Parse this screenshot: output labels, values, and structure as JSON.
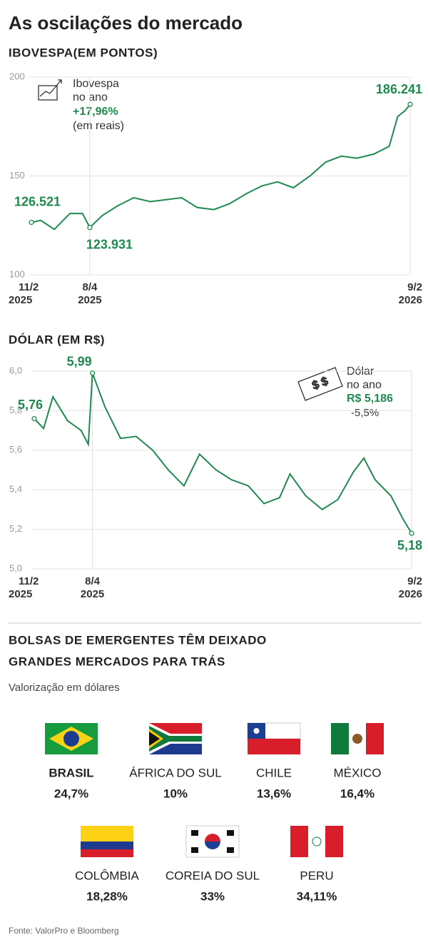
{
  "title": "As oscilações do mercado",
  "chart_data": [
    {
      "type": "line",
      "title": "IBOVESPA(EM PONTOS)",
      "color": "#1f8a4f",
      "x": [
        "2025-02-11",
        "2025-02-20",
        "2025-03-05",
        "2025-03-20",
        "2025-04-01",
        "2025-04-08",
        "2025-04-20",
        "2025-05-05",
        "2025-05-20",
        "2025-06-05",
        "2025-06-20",
        "2025-07-05",
        "2025-07-20",
        "2025-08-05",
        "2025-08-20",
        "2025-09-05",
        "2025-09-20",
        "2025-10-05",
        "2025-10-20",
        "2025-11-05",
        "2025-11-20",
        "2025-12-05",
        "2025-12-20",
        "2026-01-05",
        "2026-01-20",
        "2026-01-28",
        "2026-02-04",
        "2026-02-09"
      ],
      "values": [
        126.5,
        127.5,
        123,
        131,
        131,
        123.9,
        130,
        135,
        139,
        137,
        138,
        139,
        134,
        133,
        136,
        141,
        145,
        147,
        144,
        150,
        157,
        160,
        159,
        161,
        165,
        180,
        183,
        186.2
      ],
      "xlim": [
        "2025-02-11",
        "2026-02-09"
      ],
      "xticks": [
        {
          "value": "2025-02-11",
          "label": "11/2",
          "year": "2025"
        },
        {
          "value": "2025-04-08",
          "label": "8/4",
          "year": "2025"
        },
        {
          "value": "2026-02-09",
          "label": "9/2",
          "year": "2026"
        }
      ],
      "ylim": [
        100,
        200
      ],
      "yticks": [
        100,
        150,
        200
      ],
      "grid": true,
      "annotations": [
        {
          "x": "2025-02-11",
          "value": 126.521,
          "label": "126.521"
        },
        {
          "x": "2025-04-08",
          "value": 123.931,
          "label": "123.931"
        },
        {
          "x": "2026-02-09",
          "value": 186.241,
          "label": "186.241"
        }
      ],
      "infobox": {
        "name": "Ibovespa",
        "period": "no ano",
        "change": "+17,96%",
        "note": "(em reais)"
      }
    },
    {
      "type": "line",
      "title": "DÓLAR (EM R$)",
      "color": "#1f8a4f",
      "x": [
        "2025-02-11",
        "2025-02-20",
        "2025-03-01",
        "2025-03-15",
        "2025-03-28",
        "2025-04-04",
        "2025-04-08",
        "2025-04-20",
        "2025-05-05",
        "2025-05-20",
        "2025-06-05",
        "2025-06-20",
        "2025-07-05",
        "2025-07-20",
        "2025-08-05",
        "2025-08-20",
        "2025-09-05",
        "2025-09-20",
        "2025-10-05",
        "2025-10-15",
        "2025-10-30",
        "2025-11-15",
        "2025-11-30",
        "2025-12-15",
        "2025-12-25",
        "2026-01-05",
        "2026-01-20",
        "2026-02-01",
        "2026-02-09"
      ],
      "values": [
        5.76,
        5.71,
        5.87,
        5.75,
        5.7,
        5.63,
        5.99,
        5.82,
        5.66,
        5.67,
        5.6,
        5.5,
        5.42,
        5.58,
        5.5,
        5.45,
        5.42,
        5.33,
        5.36,
        5.48,
        5.37,
        5.3,
        5.35,
        5.49,
        5.56,
        5.45,
        5.37,
        5.25,
        5.18
      ],
      "xlim": [
        "2025-02-11",
        "2026-02-09"
      ],
      "xticks": [
        {
          "value": "2025-02-11",
          "label": "11/2",
          "year": "2025"
        },
        {
          "value": "2025-04-08",
          "label": "8/4",
          "year": "2025"
        },
        {
          "value": "2026-02-09",
          "label": "9/2",
          "year": "2026"
        }
      ],
      "ylim": [
        5.0,
        6.0
      ],
      "yticks": [
        {
          "value": 5.0,
          "label": "5,0"
        },
        {
          "value": 5.2,
          "label": "5,2"
        },
        {
          "value": 5.4,
          "label": "5,4"
        },
        {
          "value": 5.6,
          "label": "5,6"
        },
        {
          "value": 5.8,
          "label": "5,8"
        },
        {
          "value": 6.0,
          "label": "6,0"
        }
      ],
      "grid": true,
      "annotations": [
        {
          "x": "2025-02-11",
          "value": 5.76,
          "label": "5,76"
        },
        {
          "x": "2025-04-08",
          "value": 5.99,
          "label": "5,99"
        },
        {
          "x": "2026-02-09",
          "value": 5.18,
          "label": "5,18"
        }
      ],
      "infobox": {
        "name": "Dólar",
        "period": "no ano",
        "change": "R$ 5,186",
        "note": "-5,5%"
      }
    }
  ],
  "emergentes": {
    "title": [
      "BOLSAS DE EMERGENTES TÊM DEIXADO",
      "GRANDES MERCADOS PARA TRÁS"
    ],
    "subtitle": "Valorização em dólares",
    "countries": [
      {
        "name": "BRASIL",
        "value": "24,7%"
      },
      {
        "name": "ÁFRICA DO SUL",
        "value": "10%"
      },
      {
        "name": "CHILE",
        "value": "13,6%"
      },
      {
        "name": "MÉXICO",
        "value": "16,4%"
      },
      {
        "name": "COLÔMBIA",
        "value": "18,28%"
      },
      {
        "name": "COREIA DO SUL",
        "value": "33%"
      },
      {
        "name": "PERU",
        "value": "34,11%"
      }
    ]
  },
  "source": "Fonte: ValorPro e Bloomberg"
}
